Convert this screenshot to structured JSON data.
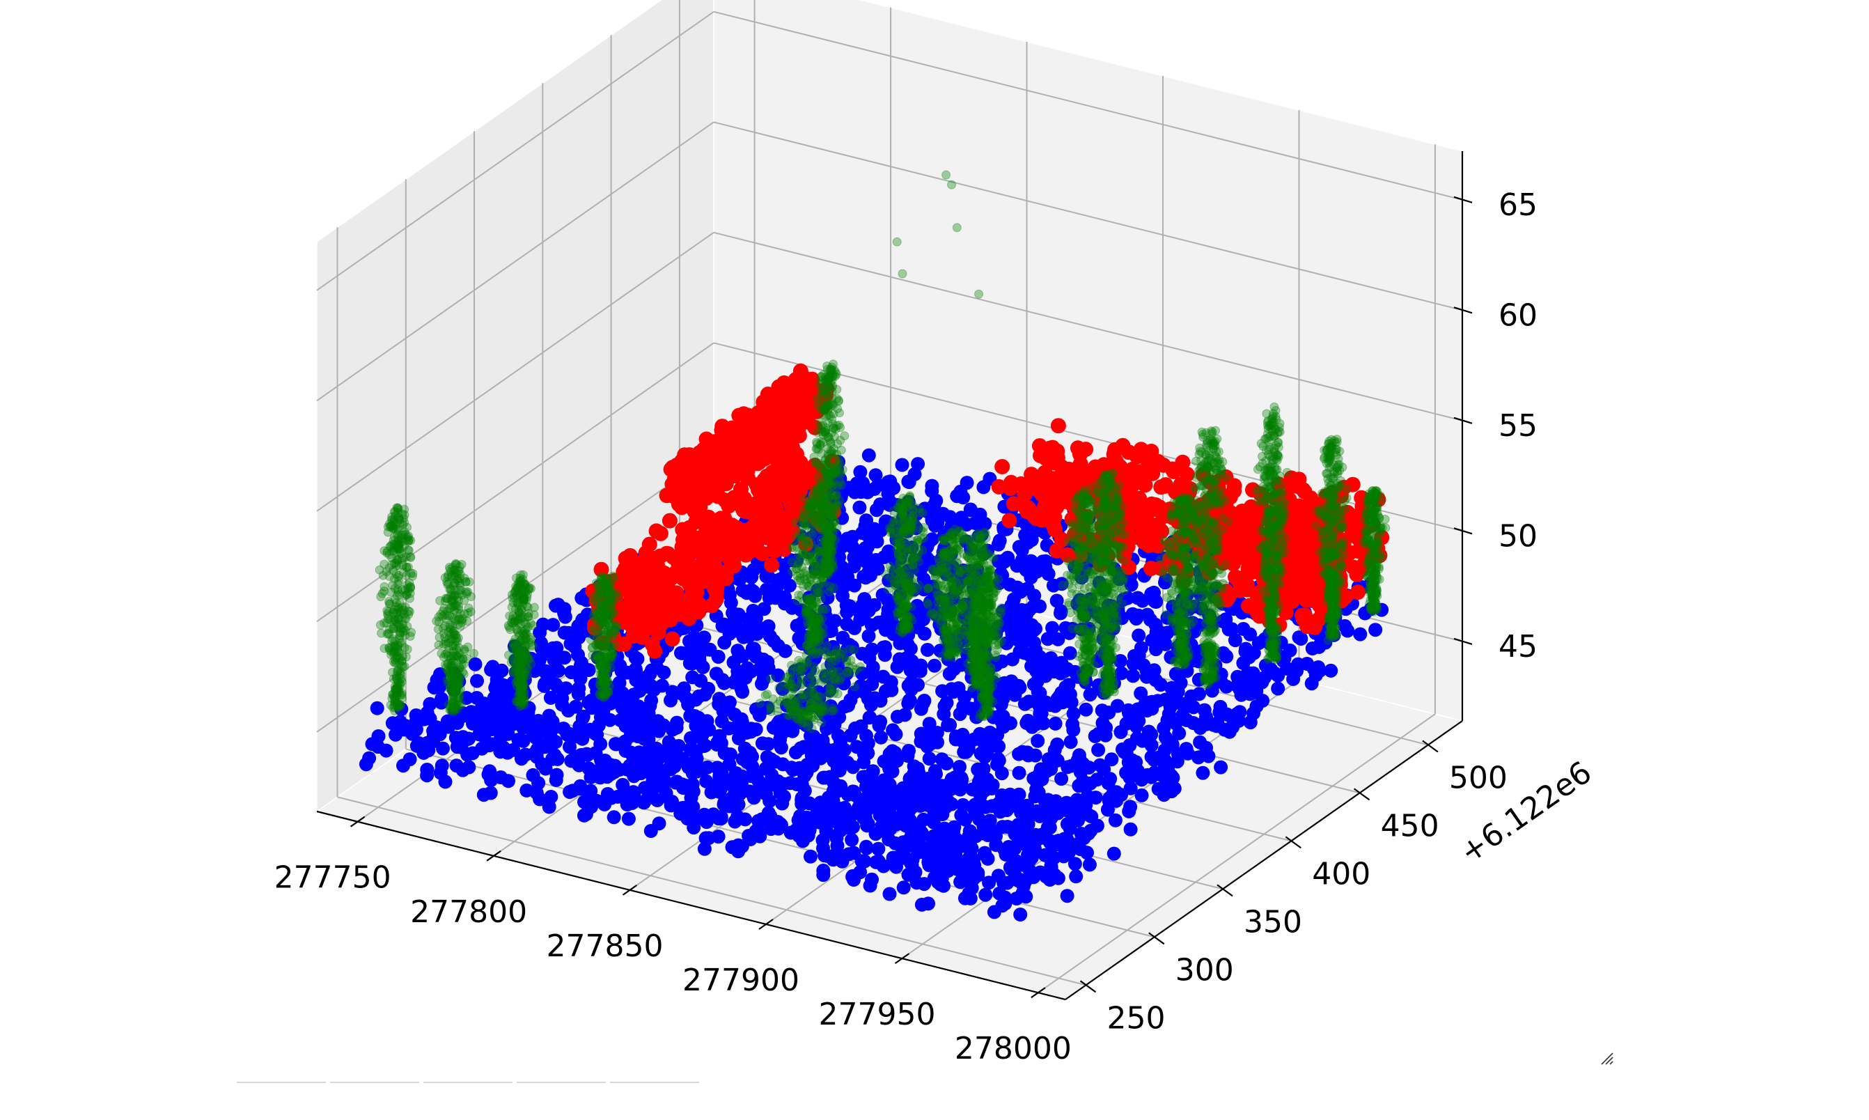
{
  "chart_data": {
    "type": "scatter",
    "projection": "3d",
    "grid": true,
    "x_axis": {
      "ticks": [
        277750,
        277800,
        277850,
        277900,
        277950,
        278000
      ],
      "tick_labels": [
        "277750",
        "277800",
        "277850",
        "277900",
        "277950",
        "278000"
      ],
      "range": [
        277735,
        278010
      ]
    },
    "y_axis": {
      "offset_label": "+6.122e6",
      "ticks": [
        250,
        300,
        350,
        400,
        450,
        500
      ],
      "tick_labels": [
        "250",
        "300",
        "350",
        "400",
        "450",
        "500"
      ],
      "range": [
        235,
        525
      ]
    },
    "z_axis": {
      "ticks": [
        45,
        50,
        55,
        60,
        65
      ],
      "tick_labels": [
        "45",
        "50",
        "55",
        "60",
        "65"
      ],
      "range": [
        41.4,
        67.2
      ]
    },
    "series": [
      {
        "color": "#0000ff",
        "alpha": 1.0,
        "description_shape": "ground-surface",
        "regions": [
          {
            "x_range": [
              277745,
              277985
            ],
            "y_range": [
              250,
              320
            ],
            "z_range": [
              43.0,
              45.5
            ]
          },
          {
            "x_range": [
              277760,
              277990
            ],
            "y_range": [
              300,
              420
            ],
            "z_range": [
              44.0,
              46.5
            ]
          },
          {
            "x_range": [
              277780,
              277990
            ],
            "y_range": [
              400,
              520
            ],
            "z_range": [
              45.0,
              47.5
            ]
          }
        ]
      },
      {
        "color": "#ff0000",
        "alpha": 1.0,
        "description_shape": "building-blocks",
        "blocks": [
          {
            "x_range": [
              277790,
              277800
            ],
            "y_range": [
              380,
              480
            ],
            "z_range": [
              50.5,
              52.5
            ]
          },
          {
            "x_range": [
              277790,
              277810
            ],
            "y_range": [
              320,
              470
            ],
            "z_range": [
              46.5,
              50.0
            ]
          },
          {
            "x_range": [
              277870,
              277960
            ],
            "y_range": [
              460,
              510
            ],
            "z_range": [
              48.0,
              51.5
            ]
          },
          {
            "x_range": [
              277960,
              277995
            ],
            "y_range": [
              440,
              500
            ],
            "z_range": [
              48.5,
              52.5
            ]
          }
        ]
      },
      {
        "color": "#007f00",
        "alpha": 0.35,
        "description_shape": "tree-crowns",
        "trees": [
          {
            "x": 277752,
            "y": 260,
            "z_base": 45.5,
            "z_top": 54.5,
            "spread": 6
          },
          {
            "x": 277768,
            "y": 270,
            "z_base": 45.5,
            "z_top": 52.0,
            "spread": 6
          },
          {
            "x": 277785,
            "y": 285,
            "z_base": 45.5,
            "z_top": 51.5,
            "spread": 5
          },
          {
            "x": 277808,
            "y": 300,
            "z_base": 46.0,
            "z_top": 51.5,
            "spread": 5
          },
          {
            "x": 277830,
            "y": 420,
            "z_base": 47.0,
            "z_top": 56.5,
            "spread": 5
          },
          {
            "x": 277845,
            "y": 380,
            "z_base": 46.0,
            "z_top": 53.0,
            "spread": 8
          },
          {
            "x": 277868,
            "y": 400,
            "z_base": 46.5,
            "z_top": 52.5,
            "spread": 7
          },
          {
            "x": 277890,
            "y": 390,
            "z_base": 46.5,
            "z_top": 52.0,
            "spread": 8
          },
          {
            "x": 277905,
            "y": 380,
            "z_base": 46.0,
            "z_top": 53.0,
            "spread": 6
          },
          {
            "x": 277918,
            "y": 360,
            "z_base": 46.0,
            "z_top": 52.5,
            "spread": 7
          },
          {
            "x": 277935,
            "y": 400,
            "z_base": 46.5,
            "z_top": 55.0,
            "spread": 8
          },
          {
            "x": 277948,
            "y": 390,
            "z_base": 46.5,
            "z_top": 56.5,
            "spread": 6
          },
          {
            "x": 277960,
            "y": 420,
            "z_base": 47.0,
            "z_top": 54.5,
            "spread": 7
          },
          {
            "x": 277975,
            "y": 410,
            "z_base": 47.0,
            "z_top": 58.5,
            "spread": 6
          },
          {
            "x": 277988,
            "y": 430,
            "z_base": 47.5,
            "z_top": 59.0,
            "spread": 5
          },
          {
            "x": 277995,
            "y": 460,
            "z_base": 47.5,
            "z_top": 56.5,
            "spread": 5
          },
          {
            "x": 278000,
            "y": 480,
            "z_base": 48.0,
            "z_top": 53.5,
            "spread": 4
          },
          {
            "x": 277870,
            "y": 330,
            "z_base": 45.5,
            "z_top": 48.5,
            "spread": 18
          }
        ],
        "outliers": [
          {
            "x": 277848,
            "y": 470,
            "z": 63.5
          },
          {
            "x": 277849,
            "y": 472,
            "z": 63.0
          },
          {
            "x": 277850,
            "y": 474,
            "z": 61.0
          },
          {
            "x": 277835,
            "y": 460,
            "z": 60.5
          },
          {
            "x": 277836,
            "y": 462,
            "z": 59.0
          },
          {
            "x": 277856,
            "y": 478,
            "z": 58.0
          },
          {
            "x": 277760,
            "y": 300,
            "z": 46.5
          }
        ]
      }
    ]
  }
}
